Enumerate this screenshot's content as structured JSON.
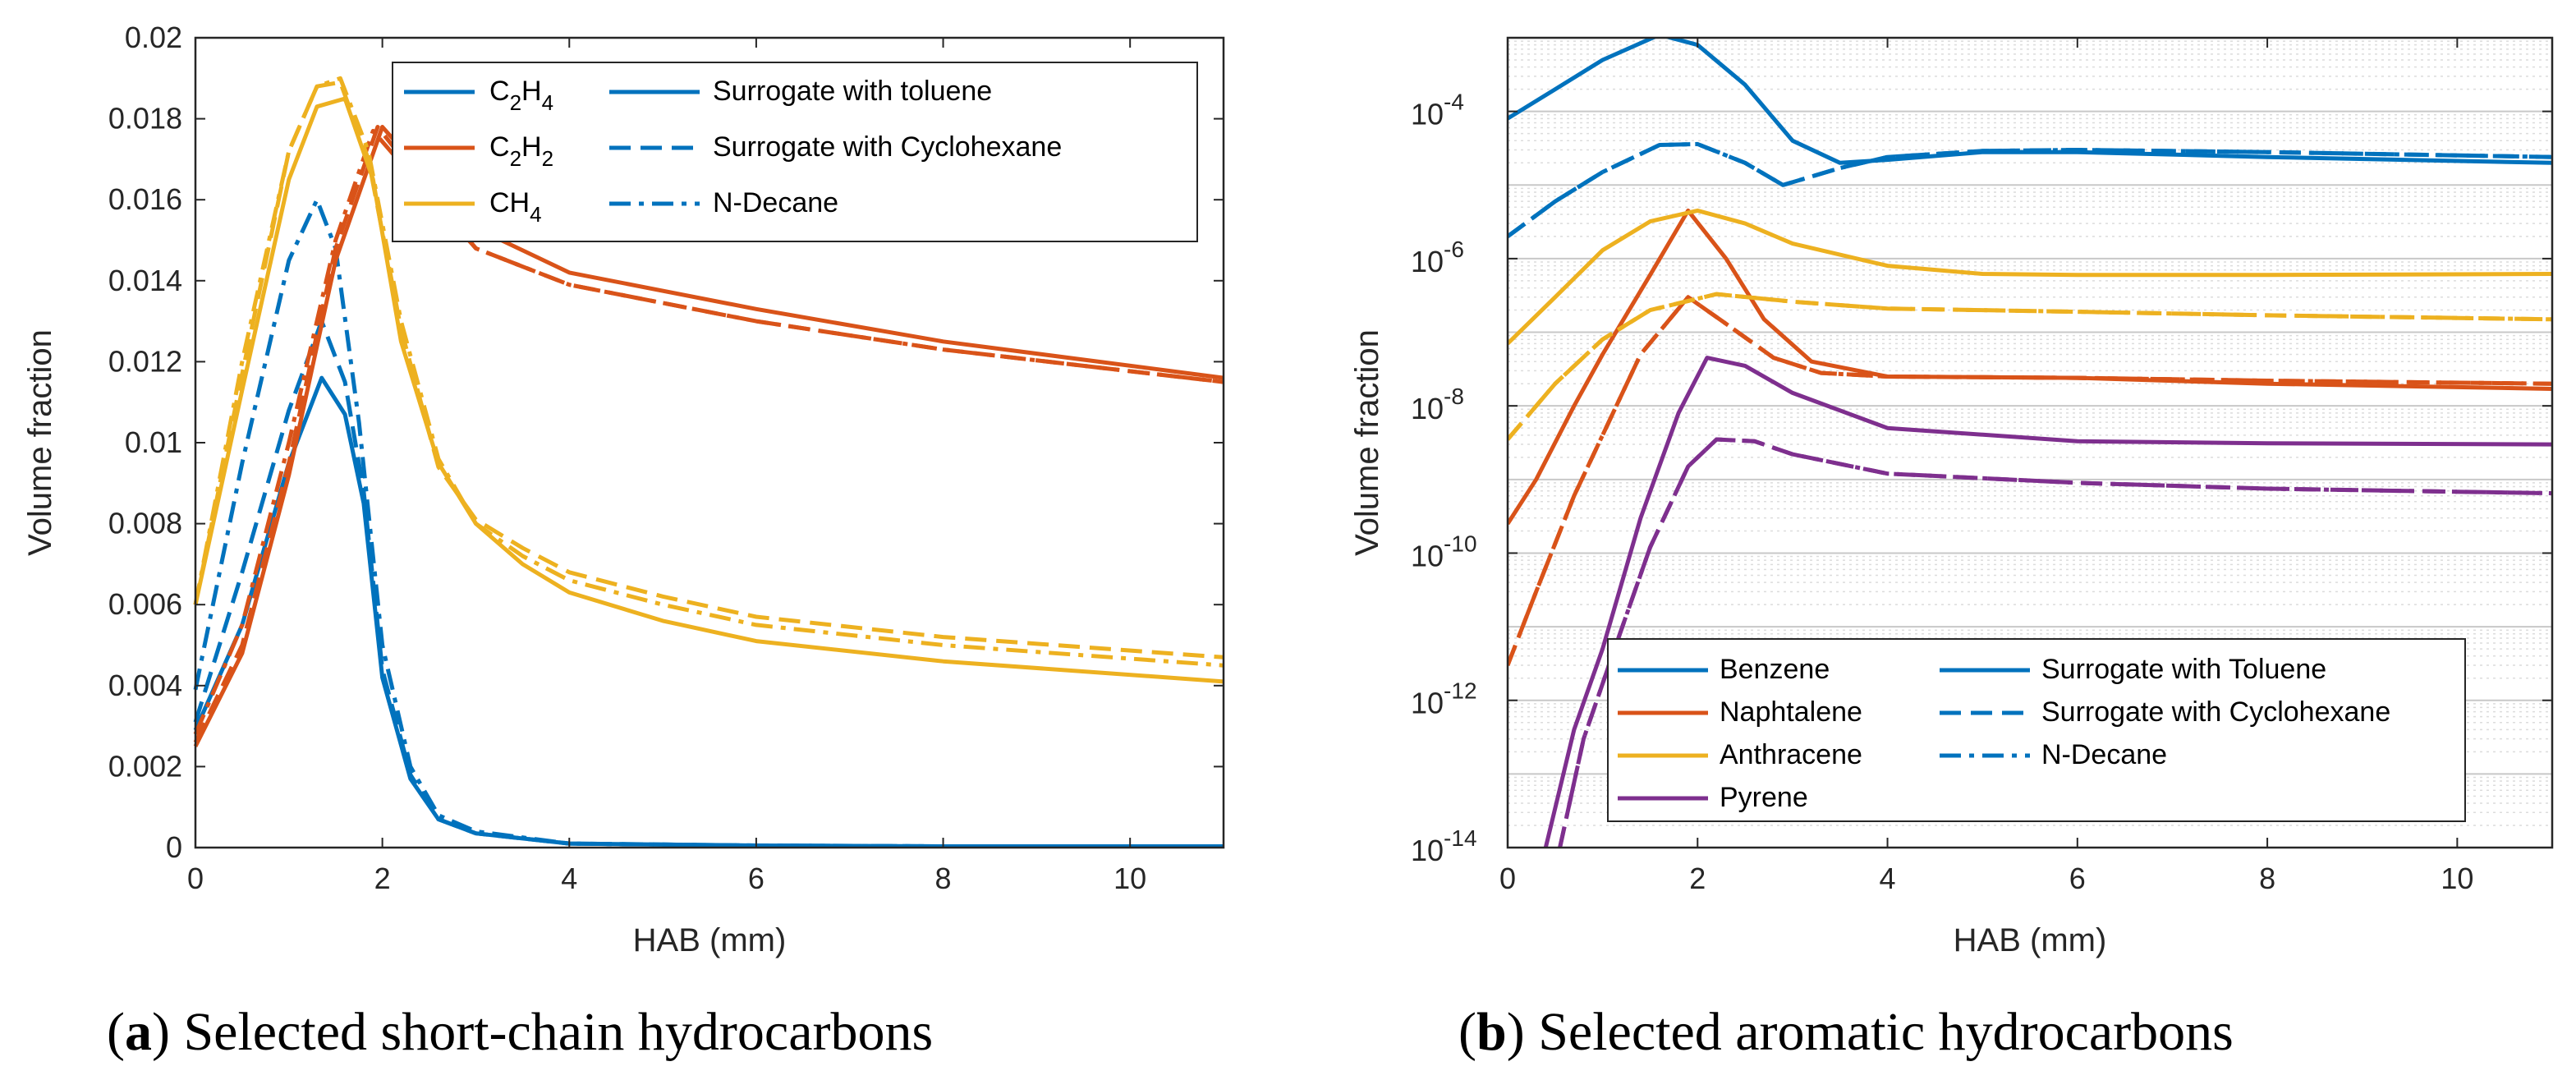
{
  "colors": {
    "blue": "#0072BD",
    "orange": "#D95319",
    "yellow": "#EDB120",
    "purple": "#7E2F8E"
  },
  "captions": {
    "a": {
      "label": "a",
      "text": "Selected short-chain hydrocarbons"
    },
    "b": {
      "label": "b",
      "text": "Selected aromatic hydrocarbons"
    }
  },
  "chart_data": [
    {
      "id": "a",
      "type": "line",
      "xlabel": "HAB (mm)",
      "ylabel": "Volume fraction",
      "xlim": [
        0,
        11
      ],
      "ylim": [
        0,
        0.02
      ],
      "yscale": "linear",
      "xticks": [
        "0",
        "2",
        "4",
        "6",
        "8",
        "10"
      ],
      "yticks": [
        "0",
        "0.002",
        "0.004",
        "0.006",
        "0.008",
        "0.01",
        "0.012",
        "0.014",
        "0.016",
        "0.018",
        "0.02"
      ],
      "legend_species": [
        {
          "base": "C",
          "sub1": "2",
          "mid": "H",
          "sub2": "4",
          "color": "#0072BD"
        },
        {
          "base": "C",
          "sub1": "2",
          "mid": "H",
          "sub2": "2",
          "color": "#D95319"
        },
        {
          "base": "CH",
          "sub1": "4",
          "mid": "",
          "sub2": "",
          "color": "#EDB120"
        }
      ],
      "legend_styles": [
        {
          "label": "Surrogate with toluene",
          "dash": "solid"
        },
        {
          "label": "Surrogate with Cyclohexane",
          "dash": "dashed"
        },
        {
          "label": "N-Decane",
          "dash": "dashdot"
        }
      ],
      "series": [
        {
          "name": "C2H4 surrogate with toluene",
          "color": "#0072BD",
          "dash": "solid",
          "x": [
            0,
            0.5,
            1,
            1.35,
            1.6,
            1.8,
            2.0,
            2.3,
            2.6,
            3,
            4,
            6,
            8,
            11
          ],
          "y": [
            0.0029,
            0.0055,
            0.0095,
            0.0116,
            0.0107,
            0.0085,
            0.0042,
            0.0017,
            0.0007,
            0.00035,
            0.0001,
            5e-05,
            3e-05,
            3e-05
          ]
        },
        {
          "name": "C2H4 surrogate with cyclohexane",
          "color": "#0072BD",
          "dash": "dashed",
          "x": [
            0,
            0.5,
            1,
            1.35,
            1.6,
            1.8,
            2.0,
            2.3,
            2.6,
            3,
            4,
            6,
            8,
            11
          ],
          "y": [
            0.0031,
            0.0068,
            0.0108,
            0.013,
            0.0115,
            0.0088,
            0.0044,
            0.0018,
            0.0007,
            0.00035,
            0.0001,
            5e-05,
            3e-05,
            3e-05
          ]
        },
        {
          "name": "C2H4 n-decane",
          "color": "#0072BD",
          "dash": "dashdot",
          "x": [
            0,
            0.5,
            1,
            1.3,
            1.5,
            1.75,
            2.0,
            2.3,
            2.6,
            3,
            4,
            6,
            8,
            11
          ],
          "y": [
            0.0039,
            0.0095,
            0.0145,
            0.016,
            0.0148,
            0.0105,
            0.005,
            0.002,
            0.0008,
            0.0004,
            0.0001,
            5e-05,
            3e-05,
            3e-05
          ]
        },
        {
          "name": "C2H2 surrogate with toluene",
          "color": "#D95319",
          "dash": "solid",
          "x": [
            0,
            0.5,
            1,
            1.5,
            2.0,
            2.5,
            3,
            4,
            6,
            8,
            11
          ],
          "y": [
            0.0025,
            0.0048,
            0.0092,
            0.0145,
            0.0178,
            0.0165,
            0.0153,
            0.0142,
            0.0133,
            0.0125,
            0.0116
          ]
        },
        {
          "name": "C2H2 surrogate with cyclohexane",
          "color": "#D95319",
          "dash": "dashed",
          "x": [
            0,
            0.5,
            1,
            1.5,
            1.95,
            2.5,
            3,
            4,
            6,
            8,
            11
          ],
          "y": [
            0.0026,
            0.005,
            0.0095,
            0.0148,
            0.0178,
            0.0162,
            0.0148,
            0.0139,
            0.013,
            0.0123,
            0.0115
          ]
        },
        {
          "name": "C2H2 n-decane",
          "color": "#D95319",
          "dash": "dashdot",
          "x": [
            0,
            0.5,
            1,
            1.5,
            1.9,
            2.5,
            3,
            4,
            6,
            8,
            11
          ],
          "y": [
            0.0028,
            0.0055,
            0.01,
            0.015,
            0.0177,
            0.0161,
            0.0148,
            0.0139,
            0.013,
            0.0123,
            0.0115
          ]
        },
        {
          "name": "CH4 surrogate with toluene",
          "color": "#EDB120",
          "dash": "solid",
          "x": [
            0,
            0.5,
            1,
            1.3,
            1.6,
            1.9,
            2.2,
            2.6,
            3,
            3.5,
            4,
            5,
            6,
            8,
            11
          ],
          "y": [
            0.006,
            0.0113,
            0.0165,
            0.0183,
            0.0185,
            0.0165,
            0.0125,
            0.0095,
            0.008,
            0.007,
            0.0063,
            0.0056,
            0.0051,
            0.0046,
            0.0041
          ]
        },
        {
          "name": "CH4 surrogate with cyclohexane",
          "color": "#EDB120",
          "dash": "dashed",
          "x": [
            0,
            0.5,
            1,
            1.3,
            1.55,
            1.85,
            2.2,
            2.6,
            3,
            3.5,
            4,
            5,
            6,
            8,
            11
          ],
          "y": [
            0.006,
            0.0117,
            0.0172,
            0.0188,
            0.0189,
            0.017,
            0.0128,
            0.0094,
            0.0081,
            0.0074,
            0.0068,
            0.0062,
            0.0057,
            0.0052,
            0.0047
          ]
        },
        {
          "name": "CH4 n-decane",
          "color": "#EDB120",
          "dash": "dashdot",
          "x": [
            0,
            0.5,
            1,
            1.3,
            1.55,
            1.85,
            2.2,
            2.6,
            3,
            3.5,
            4,
            5,
            6,
            8,
            11
          ],
          "y": [
            0.006,
            0.012,
            0.0172,
            0.0188,
            0.019,
            0.0172,
            0.013,
            0.0096,
            0.008,
            0.0072,
            0.0066,
            0.006,
            0.0055,
            0.005,
            0.0045
          ]
        }
      ]
    },
    {
      "id": "b",
      "type": "line",
      "xlabel": "HAB (mm)",
      "ylabel": "Volume fraction",
      "xlim": [
        0,
        11
      ],
      "ylim": [
        1e-14,
        0.001
      ],
      "yscale": "log",
      "xticks": [
        "0",
        "2",
        "4",
        "6",
        "8",
        "10"
      ],
      "ytick_exponents": [
        "-14",
        "-12",
        "-10",
        "-8",
        "-6",
        "-4"
      ],
      "ytick_base": "10",
      "legend_species": [
        {
          "label": "Benzene",
          "color": "#0072BD"
        },
        {
          "label": "Naphtalene",
          "color": "#D95319"
        },
        {
          "label": "Anthracene",
          "color": "#EDB120"
        },
        {
          "label": "Pyrene",
          "color": "#7E2F8E"
        }
      ],
      "legend_styles": [
        {
          "label": "Surrogate with Toluene",
          "dash": "solid"
        },
        {
          "label": "Surrogate with Cyclohexane",
          "dash": "dashed"
        },
        {
          "label": "N-Decane",
          "dash": "dashdot"
        }
      ],
      "series": [
        {
          "name": "Benzene surrogate with toluene",
          "color": "#0072BD",
          "dash": "solid",
          "x": [
            0,
            0.5,
            1,
            1.6,
            2,
            2.5,
            3,
            3.5,
            4,
            5,
            6,
            8,
            11
          ],
          "y": [
            8e-05,
            0.0002,
            0.0005,
            0.0011,
            0.0008,
            0.00023,
            4e-05,
            2e-05,
            2.2e-05,
            2.8e-05,
            2.8e-05,
            2.4e-05,
            2e-05
          ]
        },
        {
          "name": "Benzene surrogate with cyclohexane",
          "color": "#0072BD",
          "dash": "dashed",
          "x": [
            0,
            0.5,
            1,
            1.6,
            2,
            2.5,
            2.9,
            3.5,
            4,
            5,
            6,
            8,
            11
          ],
          "y": [
            2e-06,
            6e-06,
            1.5e-05,
            3.5e-05,
            3.6e-05,
            2e-05,
            1e-05,
            1.7e-05,
            2.4e-05,
            2.9e-05,
            3e-05,
            2.8e-05,
            2.4e-05
          ]
        },
        {
          "name": "Benzene n-decane",
          "color": "#0072BD",
          "dash": "dashdot",
          "x": [
            0,
            0.5,
            1,
            1.6,
            2,
            2.5,
            2.9,
            3.5,
            4,
            5,
            6,
            8,
            11
          ],
          "y": [
            2e-06,
            6e-06,
            1.5e-05,
            3.5e-05,
            3.6e-05,
            2e-05,
            1e-05,
            1.7e-05,
            2.4e-05,
            2.9e-05,
            3e-05,
            2.8e-05,
            2.4e-05
          ]
        },
        {
          "name": "Naphtalene surrogate with toluene",
          "color": "#D95319",
          "dash": "solid",
          "x": [
            0,
            0.3,
            0.7,
            1,
            1.5,
            1.9,
            2.3,
            2.7,
            3.2,
            4,
            6,
            8,
            11
          ],
          "y": [
            2.5e-10,
            1e-09,
            1e-08,
            5e-08,
            6e-07,
            4.5e-06,
            1e-06,
            1.5e-07,
            4e-08,
            2.5e-08,
            2.4e-08,
            2e-08,
            1.7e-08
          ]
        },
        {
          "name": "Naphtalene surrogate with cyclohexane",
          "color": "#D95319",
          "dash": "dashed",
          "x": [
            0,
            0.3,
            0.7,
            1,
            1.4,
            1.9,
            2.3,
            2.8,
            3.3,
            4,
            6,
            8,
            11
          ],
          "y": [
            3e-12,
            3e-11,
            6e-10,
            4e-09,
            5e-08,
            3e-07,
            1.3e-07,
            4.5e-08,
            2.8e-08,
            2.5e-08,
            2.4e-08,
            2.2e-08,
            2e-08
          ]
        },
        {
          "name": "Naphtalene n-decane",
          "color": "#D95319",
          "dash": "dashdot",
          "x": [
            0,
            0.3,
            0.7,
            1,
            1.4,
            1.9,
            2.3,
            2.8,
            3.3,
            4,
            6,
            8,
            11
          ],
          "y": [
            3e-12,
            3e-11,
            6e-10,
            4e-09,
            5e-08,
            3e-07,
            1.3e-07,
            4.5e-08,
            2.8e-08,
            2.5e-08,
            2.4e-08,
            2.2e-08,
            2e-08
          ]
        },
        {
          "name": "Anthracene surrogate with toluene",
          "color": "#EDB120",
          "dash": "solid",
          "x": [
            0,
            0.5,
            1,
            1.5,
            2,
            2.5,
            3,
            4,
            5,
            6,
            8,
            11
          ],
          "y": [
            7e-08,
            3e-07,
            1.3e-06,
            3.2e-06,
            4.5e-06,
            3e-06,
            1.6e-06,
            8e-07,
            6.2e-07,
            6e-07,
            6e-07,
            6.2e-07
          ]
        },
        {
          "name": "Anthracene surrogate with cyclohexane",
          "color": "#EDB120",
          "dash": "dashed",
          "x": [
            0,
            0.5,
            1,
            1.5,
            2.2,
            3,
            4,
            6,
            8,
            11
          ],
          "y": [
            3.5e-09,
            2e-08,
            8e-08,
            2e-07,
            3.3e-07,
            2.6e-07,
            2.1e-07,
            1.9e-07,
            1.7e-07,
            1.5e-07
          ]
        },
        {
          "name": "Anthracene n-decane",
          "color": "#EDB120",
          "dash": "dashdot",
          "x": [
            0,
            0.5,
            1,
            1.5,
            2.2,
            3,
            4,
            6,
            8,
            11
          ],
          "y": [
            3.5e-09,
            2e-08,
            8e-08,
            2e-07,
            3.3e-07,
            2.6e-07,
            2.1e-07,
            1.9e-07,
            1.7e-07,
            1.5e-07
          ]
        },
        {
          "name": "Pyrene surrogate with toluene",
          "color": "#7E2F8E",
          "dash": "solid",
          "x": [
            0.4,
            0.7,
            1,
            1.4,
            1.8,
            2.1,
            2.5,
            3,
            4,
            6,
            8,
            11
          ],
          "y": [
            1e-14,
            4e-13,
            5e-12,
            3e-10,
            8e-09,
            4.5e-08,
            3.5e-08,
            1.5e-08,
            5e-09,
            3.3e-09,
            3.1e-09,
            3e-09
          ]
        },
        {
          "name": "Pyrene surrogate with cyclohexane",
          "color": "#7E2F8E",
          "dash": "dashed",
          "x": [
            0.55,
            0.8,
            1.1,
            1.5,
            1.9,
            2.2,
            2.6,
            3,
            4,
            6,
            8,
            11
          ],
          "y": [
            1e-14,
            3e-13,
            4e-12,
            1.2e-10,
            1.5e-09,
            3.5e-09,
            3.3e-09,
            2.2e-09,
            1.2e-09,
            9e-10,
            7.5e-10,
            6.5e-10
          ]
        },
        {
          "name": "Pyrene n-decane",
          "color": "#7E2F8E",
          "dash": "dashdot",
          "x": [
            0.55,
            0.8,
            1.1,
            1.5,
            1.9,
            2.2,
            2.6,
            3,
            4,
            6,
            8,
            11
          ],
          "y": [
            1e-14,
            3e-13,
            4e-12,
            1.2e-10,
            1.5e-09,
            3.5e-09,
            3.3e-09,
            2.2e-09,
            1.2e-09,
            9e-10,
            7.5e-10,
            6.5e-10
          ]
        }
      ]
    }
  ]
}
